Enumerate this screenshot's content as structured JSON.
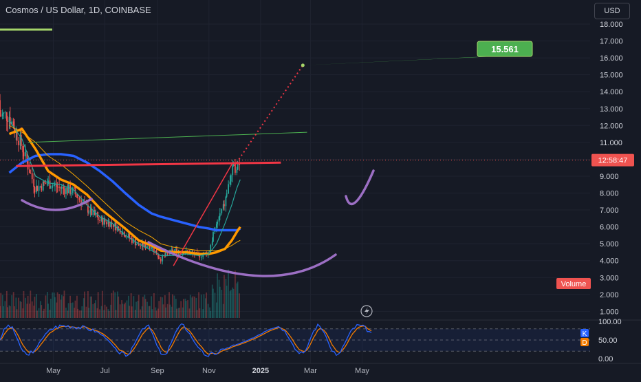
{
  "header": {
    "title": "Cosmos / US Dollar, 1D, COINBASE",
    "currency_button": "USD"
  },
  "colors": {
    "background": "#161a25",
    "grid": "#1f2330",
    "text": "#b2b5be",
    "up_candle": "#26a69a",
    "down_candle": "#ef5350",
    "ma_blue": "#2962ff",
    "ma_orange": "#ff9800",
    "ma_teal": "#26a69a",
    "resistance": "#f23645",
    "pattern_arc": "#9c6fc4",
    "target_label": "#4caf50",
    "stoch_k": "#2962ff",
    "stoch_d": "#f57c00"
  },
  "chart_data": {
    "type": "candlestick",
    "title": "Cosmos / US Dollar, 1D, COINBASE",
    "y_axis": {
      "ticks": [
        "18.000",
        "17.000",
        "16.000",
        "15.000",
        "14.000",
        "13.000",
        "12.000",
        "11.000",
        "10.000",
        "9.000",
        "8.000",
        "7.000",
        "6.000",
        "5.000",
        "4.000",
        "3.000",
        "2.000",
        "1.000"
      ],
      "range": [
        0.4,
        18.6
      ]
    },
    "x_axis": {
      "ticks": [
        "May",
        "Jul",
        "Sep",
        "Nov",
        "2025",
        "Mar",
        "May"
      ]
    },
    "x_dates": [
      "2024-03-10",
      "2024-03-25",
      "2024-04-10",
      "2024-04-25",
      "2024-05-10",
      "2024-05-25",
      "2024-06-10",
      "2024-06-25",
      "2024-07-10",
      "2024-07-25",
      "2024-08-10",
      "2024-08-25",
      "2024-09-05",
      "2024-09-20",
      "2024-10-05",
      "2024-10-20",
      "2024-11-01",
      "2024-11-10",
      "2024-11-20",
      "2024-11-28",
      "2024-12-04",
      "2024-12-08"
    ],
    "price": {
      "close": [
        12.6,
        10.8,
        8.3,
        8.6,
        8.3,
        8.1,
        7.1,
        6.4,
        6.2,
        5.6,
        4.9,
        4.9,
        4.1,
        4.6,
        4.5,
        4.3,
        4.5,
        6.1,
        7.4,
        9.2,
        9.7,
        9.9
      ],
      "current": "12:58:47"
    },
    "moving_averages": [
      {
        "color": "#2962ff",
        "values": [
          9.2,
          9.8,
          10.2,
          10.3,
          10.3,
          10.2,
          9.8,
          9.3,
          8.7,
          8.0,
          7.3,
          6.8,
          6.6,
          6.4,
          6.2,
          6.0,
          5.9,
          5.8,
          5.8,
          5.8,
          5.8,
          5.9
        ]
      },
      {
        "color": "#ff9800",
        "values": [
          11.5,
          11.8,
          10.6,
          9.3,
          8.8,
          8.5,
          7.9,
          7.1,
          6.5,
          5.9,
          5.2,
          4.9,
          4.6,
          4.5,
          4.5,
          4.4,
          4.4,
          4.5,
          4.7,
          5.2,
          5.7,
          6.0
        ]
      },
      {
        "color": "#26a69a",
        "values": [
          12.3,
          11.2,
          9.0,
          8.6,
          8.5,
          8.2,
          7.3,
          6.6,
          6.2,
          5.5,
          5.0,
          4.6,
          4.3,
          4.3,
          4.4,
          4.3,
          4.4,
          5.0,
          6.2,
          7.3,
          8.3,
          8.8
        ]
      }
    ],
    "trendlines": {
      "resistance": {
        "from": [
          "2024-03-18",
          9.6
        ],
        "to": [
          "2025-01-25",
          9.8
        ]
      },
      "long_green": {
        "from": [
          "2024-04-01",
          11.0
        ],
        "to": [
          "2025-02-25",
          11.6
        ]
      },
      "rising_red": {
        "from": [
          "2024-09-20",
          3.7
        ],
        "to": [
          "2024-11-28",
          9.7
        ]
      }
    },
    "projection": {
      "from": [
        "2024-12-01",
        9.6
      ],
      "to": [
        "2025-02-20",
        15.561
      ],
      "label": "15.561"
    },
    "labels": {
      "volume": "Volume"
    },
    "oscillator": {
      "type": "stochastic",
      "ticks": [
        "100.00",
        "50.00",
        "0.00"
      ],
      "band": [
        20,
        80
      ],
      "legend": [
        "K",
        "D"
      ]
    }
  }
}
